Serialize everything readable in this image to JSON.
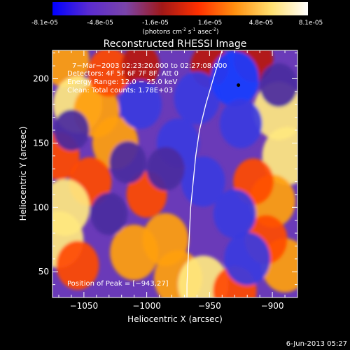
{
  "colorbar": {
    "tick_labels": [
      "-8.1e-05",
      "-4.8e-05",
      "-1.6e-05",
      "1.6e-05",
      "4.8e-05",
      "8.1e-05"
    ],
    "range": [
      -8.1e-05,
      8.1e-05
    ],
    "unit_parts": [
      "(photons cm",
      "-2",
      " s",
      "-1",
      " asec",
      "-2",
      ")"
    ],
    "stops": [
      "#0000ff",
      "#5a2bd0",
      "#7a44aa",
      "#a01818",
      "#ff3000",
      "#ff9010",
      "#ffe070",
      "#ffffff"
    ]
  },
  "chart_data": {
    "type": "heatmap",
    "title": "Reconstructed RHESSI Image",
    "xlabel": "Heliocentric X (arcsec)",
    "ylabel": "Heliocentric Y (arcsec)",
    "xlim": [
      -1075,
      -880
    ],
    "ylim": [
      30,
      222
    ],
    "xticks": [
      -1050,
      -1000,
      -950,
      -900
    ],
    "yticks": [
      50,
      100,
      150,
      200
    ],
    "xtick_labels": [
      "−1050",
      "−1000",
      "−950",
      "−900"
    ],
    "ytick_labels": [
      "50",
      "100",
      "150",
      "200"
    ],
    "annotations": [
      "7−Mar−2003 02:23:20.000 to 02:27:08.000",
      "Detectors: 4F 5F 6F 7F 8F, Att 0",
      "Energy Range: 12.0 − 25.0 keV",
      "Clean:  Total counts: 1.78E+03"
    ],
    "peak_label": "Position of Peak = [−943,27]",
    "peak_position": [
      -943,
      27
    ],
    "marker_position": [
      -927,
      195
    ],
    "limb_curve": [
      [
        -940,
        222
      ],
      [
        -947,
        200
      ],
      [
        -953,
        180
      ],
      [
        -958,
        160
      ],
      [
        -961,
        140
      ],
      [
        -963,
        120
      ],
      [
        -965,
        100
      ],
      [
        -966,
        80
      ],
      [
        -967,
        60
      ],
      [
        -968,
        40
      ],
      [
        -968,
        30
      ]
    ],
    "blobs": [
      {
        "x": -1065,
        "y": 215,
        "v": 0.8
      },
      {
        "x": -1055,
        "y": 180,
        "v": 0.85
      },
      {
        "x": -1040,
        "y": 175,
        "v": 0.7
      },
      {
        "x": -1030,
        "y": 205,
        "v": 0.55
      },
      {
        "x": -1025,
        "y": 150,
        "v": 0.7
      },
      {
        "x": -1070,
        "y": 140,
        "v": 0.5
      },
      {
        "x": -1045,
        "y": 120,
        "v": 0.55
      },
      {
        "x": -1065,
        "y": 100,
        "v": 0.85
      },
      {
        "x": -1070,
        "y": 75,
        "v": 0.85
      },
      {
        "x": -1055,
        "y": 55,
        "v": 0.55
      },
      {
        "x": -1010,
        "y": 65,
        "v": 0.8
      },
      {
        "x": -985,
        "y": 75,
        "v": 0.7
      },
      {
        "x": -1000,
        "y": 110,
        "v": 0.45
      },
      {
        "x": -975,
        "y": 45,
        "v": 0.8
      },
      {
        "x": -955,
        "y": 40,
        "v": 0.9
      },
      {
        "x": -930,
        "y": 35,
        "v": 0.6
      },
      {
        "x": -895,
        "y": 175,
        "v": 0.9
      },
      {
        "x": -888,
        "y": 140,
        "v": 0.9
      },
      {
        "x": -900,
        "y": 105,
        "v": 0.7
      },
      {
        "x": -915,
        "y": 120,
        "v": 0.45
      },
      {
        "x": -890,
        "y": 55,
        "v": 0.75
      },
      {
        "x": -905,
        "y": 75,
        "v": 0.55
      },
      {
        "x": -915,
        "y": 215,
        "v": 0.4
      },
      {
        "x": -950,
        "y": 210,
        "v": 0.35
      },
      {
        "x": -1005,
        "y": 210,
        "v": 0.35
      },
      {
        "x": -1005,
        "y": 180,
        "v": -0.55
      },
      {
        "x": -960,
        "y": 185,
        "v": -0.7
      },
      {
        "x": -930,
        "y": 200,
        "v": -0.8
      },
      {
        "x": -925,
        "y": 165,
        "v": -0.55
      },
      {
        "x": -975,
        "y": 150,
        "v": -0.55
      },
      {
        "x": -955,
        "y": 120,
        "v": -0.6
      },
      {
        "x": -930,
        "y": 95,
        "v": -0.55
      },
      {
        "x": -920,
        "y": 60,
        "v": -0.7
      },
      {
        "x": -895,
        "y": 195,
        "v": -0.35
      },
      {
        "x": -1030,
        "y": 95,
        "v": -0.3
      },
      {
        "x": -1060,
        "y": 160,
        "v": -0.25
      },
      {
        "x": -985,
        "y": 130,
        "v": -0.35
      },
      {
        "x": -1015,
        "y": 135,
        "v": -0.3
      }
    ]
  },
  "footer": {
    "timestamp": "6-Jun-2013 05:27"
  }
}
